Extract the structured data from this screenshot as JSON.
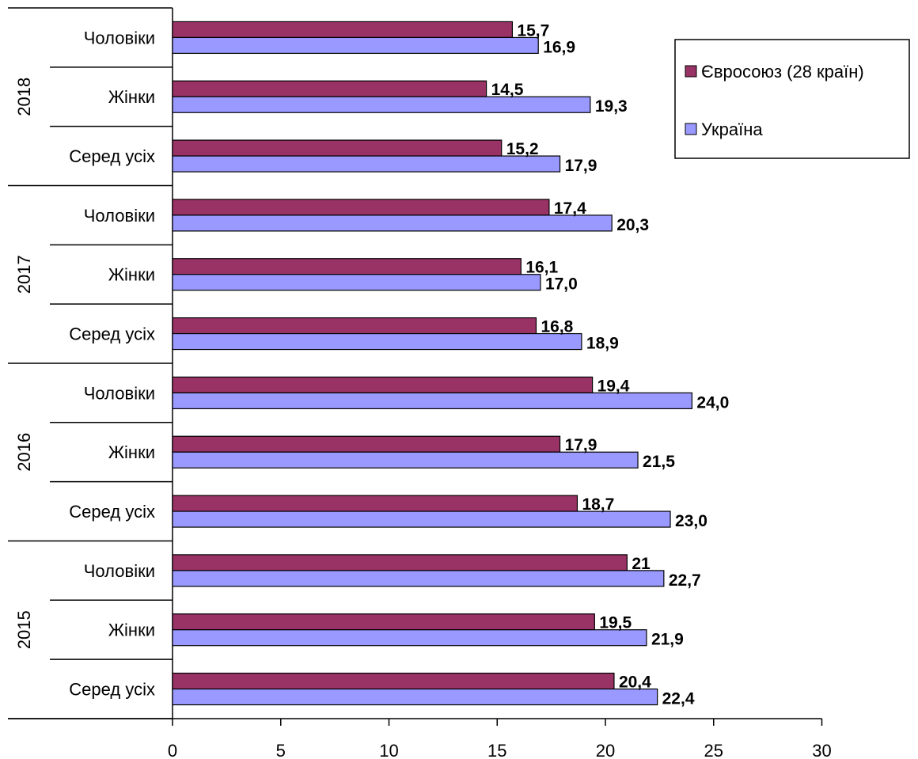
{
  "chart_data": {
    "type": "bar",
    "orientation": "horizontal",
    "title": "",
    "xlabel": "",
    "ylabel": "",
    "xlim": [
      0,
      30
    ],
    "x_ticks": [
      "0",
      "5",
      "10",
      "15",
      "20",
      "25",
      "30"
    ],
    "grid": false,
    "legend_position": "top-right",
    "colors": {
      "eu": "#993366",
      "ukraine": "#9999ff"
    },
    "groups": [
      {
        "year": "2018",
        "categories": [
          {
            "label": "Чоловіки",
            "eu": 15.7,
            "eu_label": "15,7",
            "ukraine": 16.9,
            "ukraine_label": "16,9"
          },
          {
            "label": "Жінки",
            "eu": 14.5,
            "eu_label": "14,5",
            "ukraine": 19.3,
            "ukraine_label": "19,3"
          },
          {
            "label": "Серед усіх",
            "eu": 15.2,
            "eu_label": "15,2",
            "ukraine": 17.9,
            "ukraine_label": "17,9"
          }
        ]
      },
      {
        "year": "2017",
        "categories": [
          {
            "label": "Чоловіки",
            "eu": 17.4,
            "eu_label": "17,4",
            "ukraine": 20.3,
            "ukraine_label": "20,3"
          },
          {
            "label": "Жінки",
            "eu": 16.1,
            "eu_label": "16,1",
            "ukraine": 17.0,
            "ukraine_label": "17,0"
          },
          {
            "label": "Серед усіх",
            "eu": 16.8,
            "eu_label": "16,8",
            "ukraine": 18.9,
            "ukraine_label": "18,9"
          }
        ]
      },
      {
        "year": "2016",
        "categories": [
          {
            "label": "Чоловіки",
            "eu": 19.4,
            "eu_label": "19,4",
            "ukraine": 24.0,
            "ukraine_label": "24,0"
          },
          {
            "label": "Жінки",
            "eu": 17.9,
            "eu_label": "17,9",
            "ukraine": 21.5,
            "ukraine_label": "21,5"
          },
          {
            "label": "Серед усіх",
            "eu": 18.7,
            "eu_label": "18,7",
            "ukraine": 23.0,
            "ukraine_label": "23,0"
          }
        ]
      },
      {
        "year": "2015",
        "categories": [
          {
            "label": "Чоловіки",
            "eu": 21,
            "eu_label": "21",
            "ukraine": 22.7,
            "ukraine_label": "22,7"
          },
          {
            "label": "Жінки",
            "eu": 19.5,
            "eu_label": "19,5",
            "ukraine": 21.9,
            "ukraine_label": "21,9"
          },
          {
            "label": "Серед усіх",
            "eu": 20.4,
            "eu_label": "20,4",
            "ukraine": 22.4,
            "ukraine_label": "22,4"
          }
        ]
      }
    ],
    "series": [
      {
        "key": "eu",
        "name": "Євросоюз (28 країн)"
      },
      {
        "key": "ukraine",
        "name": "Україна"
      }
    ]
  }
}
